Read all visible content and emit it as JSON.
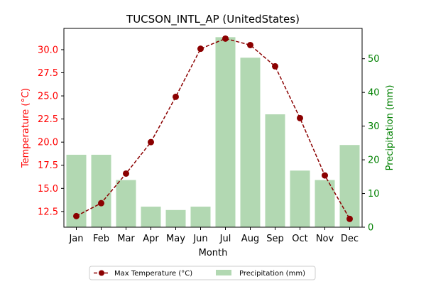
{
  "chart_data": {
    "type": "bar",
    "title": "TUCSON_INTL_AP (UnitedStates)",
    "xlabel": "Month",
    "categories": [
      "Jan",
      "Feb",
      "Mar",
      "Apr",
      "May",
      "Jun",
      "Jul",
      "Aug",
      "Sep",
      "Oct",
      "Nov",
      "Dec"
    ],
    "y_left": {
      "label": "Temperature (°C)",
      "range": [
        10.8,
        32.3
      ],
      "ticks": [
        "12.5",
        "15.0",
        "17.5",
        "20.0",
        "22.5",
        "25.0",
        "27.5",
        "30.0"
      ],
      "tick_values": [
        12.5,
        15.0,
        17.5,
        20.0,
        22.5,
        25.0,
        27.5,
        30.0
      ],
      "color": "#ff0000"
    },
    "y_right": {
      "label": "Precipitation (mm)",
      "range": [
        0,
        59
      ],
      "ticks": [
        "0",
        "10",
        "20",
        "30",
        "40",
        "50"
      ],
      "tick_values": [
        0,
        10,
        20,
        30,
        40,
        50
      ],
      "color": "#008000"
    },
    "series": [
      {
        "name": "Max Temperature (°C)",
        "kind": "line",
        "axis": "left",
        "color": "#8b0000",
        "values": [
          12.0,
          13.4,
          16.6,
          20.0,
          24.9,
          30.1,
          31.2,
          30.5,
          28.2,
          22.6,
          16.4,
          11.7
        ]
      },
      {
        "name": "Precipitation (mm)",
        "kind": "bar",
        "axis": "right",
        "color": "#b2d8b2",
        "values": [
          21.5,
          21.5,
          14.0,
          6.1,
          5.1,
          6.1,
          56.4,
          50.3,
          33.5,
          16.8,
          14.0,
          24.4
        ]
      }
    ],
    "legend": {
      "placement": "bottom-center",
      "ncol": 2
    },
    "grid": false
  }
}
